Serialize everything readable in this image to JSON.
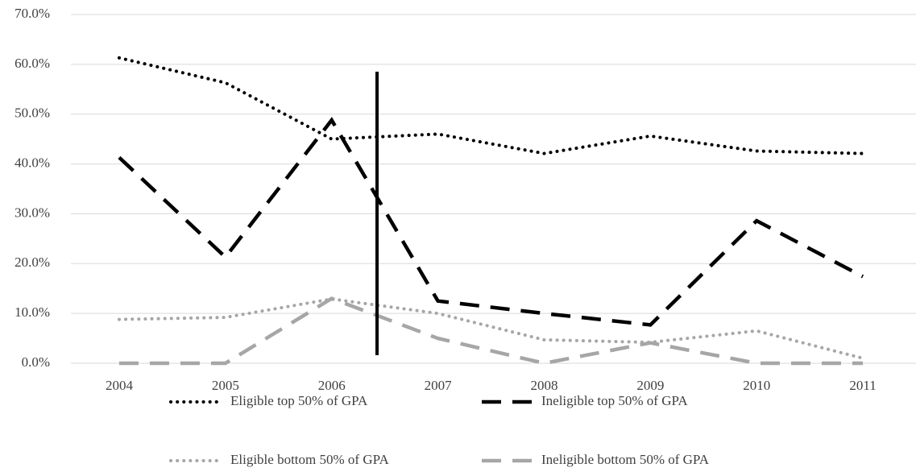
{
  "chart_data": {
    "type": "line",
    "categories": [
      "2004",
      "2005",
      "2006",
      "2007",
      "2008",
      "2009",
      "2010",
      "2011"
    ],
    "series": [
      {
        "name": "Eligible top 50% of GPA",
        "color": "#000000",
        "style": "dotted",
        "values": [
          61.3,
          56.3,
          45.0,
          46.0,
          42.1,
          45.6,
          42.6,
          42.1
        ]
      },
      {
        "name": "Ineligible top 50% of GPA",
        "color": "#000000",
        "style": "dashed",
        "values": [
          41.3,
          21.3,
          48.8,
          12.5,
          10.0,
          7.7,
          28.6,
          17.4
        ]
      },
      {
        "name": "Eligible bottom 50% of GPA",
        "color": "#a6a6a6",
        "style": "dotted",
        "values": [
          8.8,
          9.2,
          12.9,
          10.0,
          4.7,
          4.2,
          6.5,
          1.0
        ]
      },
      {
        "name": "Ineligible bottom 50% of GPA",
        "color": "#a6a6a6",
        "style": "dashed",
        "values": [
          0,
          0,
          13.0,
          5.0,
          0,
          4.1,
          0,
          0
        ]
      }
    ],
    "ylim": [
      0,
      70
    ],
    "yticks": [
      {
        "value": 0,
        "label": "0.0%"
      },
      {
        "value": 10,
        "label": "10.0%"
      },
      {
        "value": 20,
        "label": "20.0%"
      },
      {
        "value": 30,
        "label": "30.0%"
      },
      {
        "value": 40,
        "label": "40.0%"
      },
      {
        "value": 50,
        "label": "50.0%"
      },
      {
        "value": 60,
        "label": "60.0%"
      },
      {
        "value": 70,
        "label": "70.0%"
      }
    ],
    "grid": true,
    "legend": "bottom"
  }
}
